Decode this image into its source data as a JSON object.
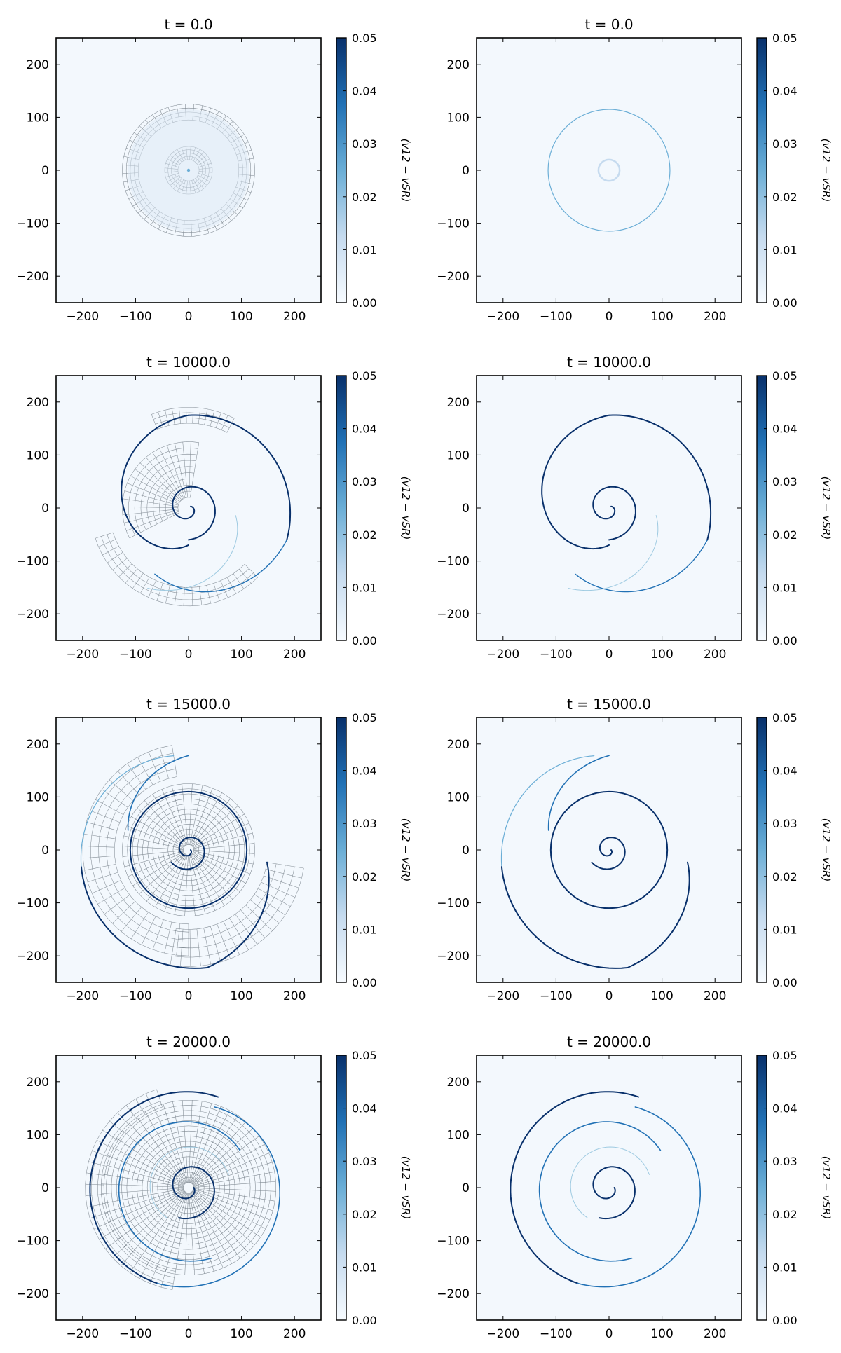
{
  "chart_data": [
    {
      "type": "heatmap",
      "title": "t = 0.0",
      "xlim": [
        -250,
        250
      ],
      "ylim": [
        -250,
        250
      ],
      "xticks": [
        "−200",
        "−100",
        "0",
        "100",
        "200"
      ],
      "yticks": [
        "200",
        "100",
        "0",
        "−100",
        "−200"
      ],
      "colorbar": {
        "label": "(v12 − vSR)",
        "ticks": [
          "0.05",
          "0.04",
          "0.03",
          "0.02",
          "0.01",
          "0.00"
        ],
        "range": [
          0,
          0.05
        ],
        "colormap": "Blues"
      },
      "mesh_overlay": true
    },
    {
      "type": "heatmap",
      "title": "t = 0.0",
      "xlim": [
        -250,
        250
      ],
      "ylim": [
        -250,
        250
      ],
      "xticks": [
        "−200",
        "−100",
        "0",
        "100",
        "200"
      ],
      "yticks": [
        "200",
        "100",
        "0",
        "−100",
        "−200"
      ],
      "colorbar": {
        "label": "(v12 − vSR)",
        "ticks": [
          "0.05",
          "0.04",
          "0.03",
          "0.02",
          "0.01",
          "0.00"
        ],
        "range": [
          0,
          0.05
        ],
        "colormap": "Blues"
      },
      "mesh_overlay": false
    },
    {
      "type": "heatmap",
      "title": "t = 10000.0",
      "xlim": [
        -250,
        250
      ],
      "ylim": [
        -250,
        250
      ],
      "xticks": [
        "−200",
        "−100",
        "0",
        "100",
        "200"
      ],
      "yticks": [
        "200",
        "100",
        "0",
        "−100",
        "−200"
      ],
      "colorbar": {
        "label": "(v12 − vSR)",
        "ticks": [
          "0.05",
          "0.04",
          "0.03",
          "0.02",
          "0.01",
          "0.00"
        ],
        "range": [
          0,
          0.05
        ],
        "colormap": "Blues"
      },
      "mesh_overlay": true
    },
    {
      "type": "heatmap",
      "title": "t = 10000.0",
      "xlim": [
        -250,
        250
      ],
      "ylim": [
        -250,
        250
      ],
      "xticks": [
        "−200",
        "−100",
        "0",
        "100",
        "200"
      ],
      "yticks": [
        "200",
        "100",
        "0",
        "−100",
        "−200"
      ],
      "colorbar": {
        "label": "(v12 − vSR)",
        "ticks": [
          "0.05",
          "0.04",
          "0.03",
          "0.02",
          "0.01",
          "0.00"
        ],
        "range": [
          0,
          0.05
        ],
        "colormap": "Blues"
      },
      "mesh_overlay": false
    },
    {
      "type": "heatmap",
      "title": "t = 15000.0",
      "xlim": [
        -250,
        250
      ],
      "ylim": [
        -250,
        250
      ],
      "xticks": [
        "−200",
        "−100",
        "0",
        "100",
        "200"
      ],
      "yticks": [
        "200",
        "100",
        "0",
        "−100",
        "−200"
      ],
      "colorbar": {
        "label": "(v12 − vSR)",
        "ticks": [
          "0.05",
          "0.04",
          "0.03",
          "0.02",
          "0.01",
          "0.00"
        ],
        "range": [
          0,
          0.05
        ],
        "colormap": "Blues"
      },
      "mesh_overlay": true
    },
    {
      "type": "heatmap",
      "title": "t = 15000.0",
      "xlim": [
        -250,
        250
      ],
      "ylim": [
        -250,
        250
      ],
      "xticks": [
        "−200",
        "−100",
        "0",
        "100",
        "200"
      ],
      "yticks": [
        "200",
        "100",
        "0",
        "−100",
        "−200"
      ],
      "colorbar": {
        "label": "(v12 − vSR)",
        "ticks": [
          "0.05",
          "0.04",
          "0.03",
          "0.02",
          "0.01",
          "0.00"
        ],
        "range": [
          0,
          0.05
        ],
        "colormap": "Blues"
      },
      "mesh_overlay": false
    },
    {
      "type": "heatmap",
      "title": "t = 20000.0",
      "xlim": [
        -250,
        250
      ],
      "ylim": [
        -250,
        250
      ],
      "xticks": [
        "−200",
        "−100",
        "0",
        "100",
        "200"
      ],
      "yticks": [
        "200",
        "100",
        "0",
        "−100",
        "−200"
      ],
      "colorbar": {
        "label": "(v12 − vSR)",
        "ticks": [
          "0.05",
          "0.04",
          "0.03",
          "0.02",
          "0.01",
          "0.00"
        ],
        "range": [
          0,
          0.05
        ],
        "colormap": "Blues"
      },
      "mesh_overlay": true
    },
    {
      "type": "heatmap",
      "title": "t = 20000.0",
      "xlim": [
        -250,
        250
      ],
      "ylim": [
        -250,
        250
      ],
      "xticks": [
        "−200",
        "−100",
        "0",
        "100",
        "200"
      ],
      "yticks": [
        "200",
        "100",
        "0",
        "−100",
        "−200"
      ],
      "colorbar": {
        "label": "(v12 − vSR)",
        "ticks": [
          "0.05",
          "0.04",
          "0.03",
          "0.02",
          "0.01",
          "0.00"
        ],
        "range": [
          0,
          0.05
        ],
        "colormap": "Blues"
      },
      "mesh_overlay": false
    }
  ],
  "colors": {
    "background": "#f3f8fd",
    "mesh": "#5f6a74",
    "line_dark": "#08306b",
    "line_mid": "#2171b5",
    "line_light": "#6baed6",
    "cbar_top": "#08306b",
    "cbar_bottom": "#f7fbff"
  }
}
